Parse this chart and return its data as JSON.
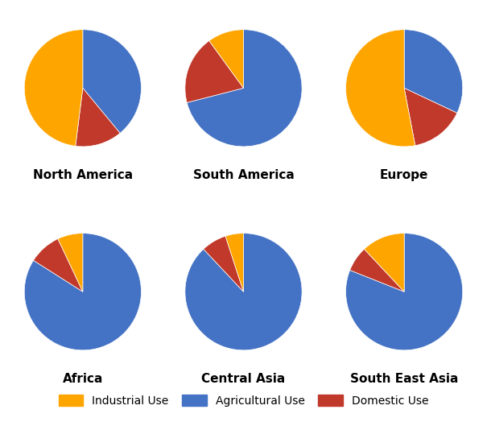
{
  "regions": [
    "North America",
    "South America",
    "Europe",
    "Africa",
    "Central Asia",
    "South East Asia"
  ],
  "data": {
    "North America": [
      39,
      13,
      48
    ],
    "South America": [
      71,
      19,
      10
    ],
    "Europe": [
      32,
      15,
      53
    ],
    "Africa": [
      84,
      9,
      7
    ],
    "Central Asia": [
      88,
      7,
      5
    ],
    "South East Asia": [
      81,
      7,
      12
    ]
  },
  "slice_order": [
    "Agricultural",
    "Domestic",
    "Industrial"
  ],
  "colors": [
    "#4472C4",
    "#C0392B",
    "#FFA500"
  ],
  "label_color": "white",
  "label_fontsize": 8.5,
  "title_fontsize": 11,
  "background_color": "#ffffff",
  "legend_labels": [
    "Industrial Use",
    "Agricultural Use",
    "Domestic Use"
  ],
  "legend_colors": [
    "#FFA500",
    "#4472C4",
    "#C0392B"
  ],
  "startangle": 90
}
